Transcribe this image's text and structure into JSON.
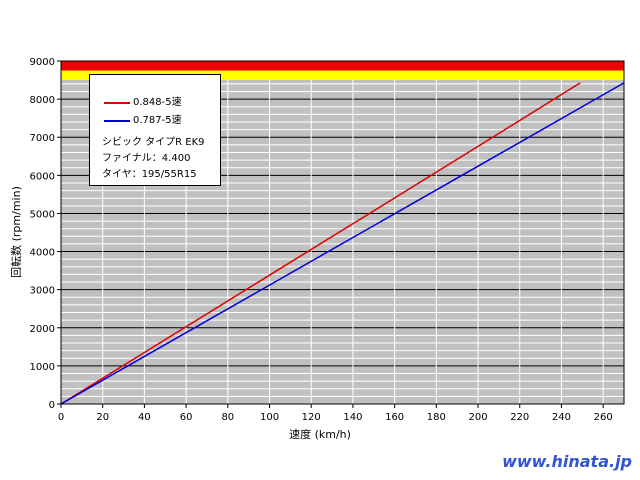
{
  "chart_data": {
    "type": "line",
    "title": "",
    "xlabel": "速度 (km/h)",
    "ylabel": "回転数 (rpm/min)",
    "xlim": [
      0,
      270
    ],
    "ylim": [
      0,
      9000
    ],
    "x_ticks": [
      0,
      20,
      40,
      60,
      80,
      100,
      120,
      140,
      160,
      180,
      200,
      220,
      240,
      260
    ],
    "y_ticks": [
      0,
      1000,
      2000,
      3000,
      4000,
      5000,
      6000,
      7000,
      8000,
      9000
    ],
    "grid": true,
    "bands": [
      {
        "name": "red-zone",
        "from": 8750,
        "to": 9000,
        "color": "#ee0000"
      },
      {
        "name": "yellow-zone",
        "from": 8500,
        "to": 8750,
        "color": "#ffff00"
      }
    ],
    "series": [
      {
        "name": "0.848-5速",
        "color": "#dd0000",
        "x": [
          0,
          100,
          200,
          249
        ],
        "y": [
          0,
          3380,
          6760,
          8425
        ]
      },
      {
        "name": "0.787-5速",
        "color": "#0000dd",
        "x": [
          0,
          100,
          200,
          270
        ],
        "y": [
          0,
          3120,
          6240,
          8425
        ]
      }
    ],
    "legend_position": "upper-left-inside",
    "annotations": [
      "シビック タイプR EK9",
      "ファイナル：4.400",
      "タイヤ：195/55R15"
    ]
  },
  "legend": {
    "series": [
      {
        "label": "0.848-5速",
        "color": "#dd0000"
      },
      {
        "label": "0.787-5速",
        "color": "#0000dd"
      }
    ],
    "car": "シビック タイプR EK9",
    "final": "ファイナル：4.400",
    "tire": "タイヤ：195/55R15"
  },
  "axes": {
    "xlabel": "速度 (km/h)",
    "ylabel": "回転数 (rpm/min)"
  },
  "watermark": "www.hinata.jp"
}
